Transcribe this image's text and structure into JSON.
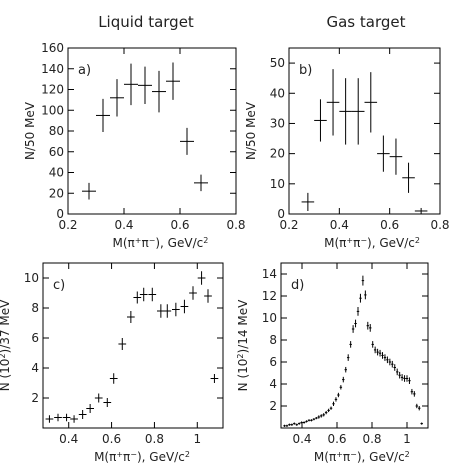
{
  "column_titles": [
    "Liquid target",
    "Gas target"
  ],
  "chart_data": [
    {
      "type": "scatter",
      "panel_label": "a)",
      "ylabel": "N/50 MeV",
      "xlabel_parts": [
        "M(π",
        "+",
        "π",
        "−",
        "), GeV/c",
        "2"
      ],
      "xlim": [
        0.2,
        0.8
      ],
      "ylim": [
        0,
        160
      ],
      "xticks": [
        0.2,
        0.4,
        0.6,
        0.8
      ],
      "xtick_labels": [
        "0.2",
        "0.4",
        "0.6",
        "0.8"
      ],
      "yticks": [
        0,
        20,
        40,
        60,
        80,
        100,
        120,
        140,
        160
      ],
      "ytick_labels": [
        "0",
        "20",
        "40",
        "60",
        "80",
        "100",
        "120",
        "140",
        "160"
      ],
      "x_error": 0.025,
      "points": [
        {
          "x": 0.275,
          "y": 22,
          "err": 8
        },
        {
          "x": 0.325,
          "y": 95,
          "err": 16
        },
        {
          "x": 0.375,
          "y": 112,
          "err": 18
        },
        {
          "x": 0.425,
          "y": 125,
          "err": 20
        },
        {
          "x": 0.475,
          "y": 124,
          "err": 18
        },
        {
          "x": 0.525,
          "y": 118,
          "err": 20
        },
        {
          "x": 0.575,
          "y": 128,
          "err": 18
        },
        {
          "x": 0.625,
          "y": 70,
          "err": 13
        },
        {
          "x": 0.675,
          "y": 30,
          "err": 8
        }
      ]
    },
    {
      "type": "scatter",
      "panel_label": "b)",
      "ylabel": "N/50 MeV",
      "xlabel_parts": [
        "M(π",
        "+",
        "π",
        "−",
        "), GeV/c",
        "2"
      ],
      "xlim": [
        0.2,
        0.8
      ],
      "ylim": [
        0,
        55
      ],
      "xticks": [
        0.2,
        0.4,
        0.6,
        0.8
      ],
      "xtick_labels": [
        "0.2",
        "0.4",
        "0.6",
        "0.8"
      ],
      "yticks": [
        0,
        10,
        20,
        30,
        40,
        50
      ],
      "ytick_labels": [
        "0",
        "10",
        "20",
        "30",
        "40",
        "50"
      ],
      "x_error": 0.025,
      "points": [
        {
          "x": 0.275,
          "y": 4,
          "err": 3
        },
        {
          "x": 0.325,
          "y": 31,
          "err": 7
        },
        {
          "x": 0.375,
          "y": 37,
          "err": 11
        },
        {
          "x": 0.425,
          "y": 34,
          "err": 11
        },
        {
          "x": 0.475,
          "y": 34,
          "err": 11
        },
        {
          "x": 0.525,
          "y": 37,
          "err": 10
        },
        {
          "x": 0.575,
          "y": 20,
          "err": 6
        },
        {
          "x": 0.625,
          "y": 19,
          "err": 6
        },
        {
          "x": 0.675,
          "y": 12,
          "err": 5
        },
        {
          "x": 0.725,
          "y": 1,
          "err": 1
        }
      ]
    },
    {
      "type": "scatter",
      "panel_label": "c)",
      "ylabel_parts": [
        "N (10",
        "2",
        ")/37 MeV"
      ],
      "xlabel_parts": [
        "M(π",
        "+",
        "π",
        "−",
        "), GeV/c",
        "2"
      ],
      "xlim": [
        0.28,
        1.12
      ],
      "ylim": [
        0,
        11
      ],
      "xticks": [
        0.4,
        0.6,
        0.8,
        1.0
      ],
      "xtick_labels": [
        "0.4",
        "0.6",
        "0.8",
        "1"
      ],
      "yticks": [
        2,
        4,
        6,
        8,
        10
      ],
      "ytick_labels": [
        "2",
        "4",
        "6",
        "8",
        "10"
      ],
      "x_error": 0.018,
      "points": [
        {
          "x": 0.31,
          "y": 0.6,
          "err": 0.25
        },
        {
          "x": 0.35,
          "y": 0.7,
          "err": 0.25
        },
        {
          "x": 0.39,
          "y": 0.7,
          "err": 0.25
        },
        {
          "x": 0.425,
          "y": 0.6,
          "err": 0.25
        },
        {
          "x": 0.465,
          "y": 0.9,
          "err": 0.3
        },
        {
          "x": 0.5,
          "y": 1.3,
          "err": 0.3
        },
        {
          "x": 0.54,
          "y": 2.0,
          "err": 0.3
        },
        {
          "x": 0.58,
          "y": 1.7,
          "err": 0.3
        },
        {
          "x": 0.61,
          "y": 3.3,
          "err": 0.35
        },
        {
          "x": 0.65,
          "y": 5.6,
          "err": 0.4
        },
        {
          "x": 0.69,
          "y": 7.4,
          "err": 0.4
        },
        {
          "x": 0.72,
          "y": 8.7,
          "err": 0.4
        },
        {
          "x": 0.75,
          "y": 8.9,
          "err": 0.45
        },
        {
          "x": 0.79,
          "y": 8.9,
          "err": 0.45
        },
        {
          "x": 0.83,
          "y": 7.8,
          "err": 0.45
        },
        {
          "x": 0.86,
          "y": 7.8,
          "err": 0.45
        },
        {
          "x": 0.9,
          "y": 7.9,
          "err": 0.45
        },
        {
          "x": 0.94,
          "y": 8.1,
          "err": 0.45
        },
        {
          "x": 0.98,
          "y": 9.0,
          "err": 0.45
        },
        {
          "x": 1.02,
          "y": 10.0,
          "err": 0.45
        },
        {
          "x": 1.05,
          "y": 8.8,
          "err": 0.45
        },
        {
          "x": 1.08,
          "y": 3.3,
          "err": 0.3
        }
      ]
    },
    {
      "type": "scatter",
      "panel_label": "d)",
      "ylabel_parts": [
        "N (10",
        "2",
        ")/14 MeV"
      ],
      "xlabel_parts": [
        "M(π",
        "+",
        "π",
        "−",
        "), GeV/c",
        "2"
      ],
      "xlim": [
        0.28,
        1.12
      ],
      "ylim": [
        0,
        15
      ],
      "xticks": [
        0.4,
        0.6,
        0.8,
        1.0
      ],
      "xtick_labels": [
        "0.4",
        "0.6",
        "0.8",
        "1"
      ],
      "yticks": [
        2,
        4,
        6,
        8,
        10,
        12,
        14
      ],
      "ytick_labels": [
        "2",
        "4",
        "6",
        "8",
        "10",
        "12",
        "14"
      ],
      "x_error": 0.007,
      "points": [
        {
          "x": 0.3,
          "y": 0.2,
          "err": 0.1
        },
        {
          "x": 0.314,
          "y": 0.2,
          "err": 0.1
        },
        {
          "x": 0.328,
          "y": 0.3,
          "err": 0.1
        },
        {
          "x": 0.342,
          "y": 0.3,
          "err": 0.1
        },
        {
          "x": 0.356,
          "y": 0.4,
          "err": 0.1
        },
        {
          "x": 0.37,
          "y": 0.3,
          "err": 0.1
        },
        {
          "x": 0.384,
          "y": 0.4,
          "err": 0.1
        },
        {
          "x": 0.398,
          "y": 0.5,
          "err": 0.1
        },
        {
          "x": 0.412,
          "y": 0.5,
          "err": 0.1
        },
        {
          "x": 0.426,
          "y": 0.6,
          "err": 0.1
        },
        {
          "x": 0.44,
          "y": 0.7,
          "err": 0.1
        },
        {
          "x": 0.454,
          "y": 0.7,
          "err": 0.1
        },
        {
          "x": 0.468,
          "y": 0.8,
          "err": 0.1
        },
        {
          "x": 0.482,
          "y": 0.9,
          "err": 0.1
        },
        {
          "x": 0.496,
          "y": 1.0,
          "err": 0.15
        },
        {
          "x": 0.51,
          "y": 1.1,
          "err": 0.15
        },
        {
          "x": 0.524,
          "y": 1.2,
          "err": 0.15
        },
        {
          "x": 0.538,
          "y": 1.4,
          "err": 0.15
        },
        {
          "x": 0.552,
          "y": 1.6,
          "err": 0.15
        },
        {
          "x": 0.566,
          "y": 1.8,
          "err": 0.15
        },
        {
          "x": 0.58,
          "y": 2.2,
          "err": 0.2
        },
        {
          "x": 0.594,
          "y": 2.6,
          "err": 0.2
        },
        {
          "x": 0.608,
          "y": 3.0,
          "err": 0.2
        },
        {
          "x": 0.622,
          "y": 3.7,
          "err": 0.2
        },
        {
          "x": 0.636,
          "y": 4.4,
          "err": 0.25
        },
        {
          "x": 0.65,
          "y": 5.3,
          "err": 0.25
        },
        {
          "x": 0.664,
          "y": 6.4,
          "err": 0.3
        },
        {
          "x": 0.678,
          "y": 7.6,
          "err": 0.3
        },
        {
          "x": 0.692,
          "y": 9.0,
          "err": 0.35
        },
        {
          "x": 0.706,
          "y": 9.5,
          "err": 0.35
        },
        {
          "x": 0.72,
          "y": 10.6,
          "err": 0.4
        },
        {
          "x": 0.734,
          "y": 11.8,
          "err": 0.4
        },
        {
          "x": 0.748,
          "y": 13.4,
          "err": 0.45
        },
        {
          "x": 0.762,
          "y": 12.1,
          "err": 0.4
        },
        {
          "x": 0.776,
          "y": 9.3,
          "err": 0.35
        },
        {
          "x": 0.79,
          "y": 9.1,
          "err": 0.35
        },
        {
          "x": 0.804,
          "y": 7.6,
          "err": 0.3
        },
        {
          "x": 0.818,
          "y": 7.1,
          "err": 0.3
        },
        {
          "x": 0.832,
          "y": 6.9,
          "err": 0.3
        },
        {
          "x": 0.846,
          "y": 6.8,
          "err": 0.3
        },
        {
          "x": 0.86,
          "y": 6.6,
          "err": 0.3
        },
        {
          "x": 0.874,
          "y": 6.4,
          "err": 0.3
        },
        {
          "x": 0.888,
          "y": 6.2,
          "err": 0.3
        },
        {
          "x": 0.902,
          "y": 6.0,
          "err": 0.3
        },
        {
          "x": 0.916,
          "y": 5.8,
          "err": 0.3
        },
        {
          "x": 0.93,
          "y": 5.5,
          "err": 0.3
        },
        {
          "x": 0.944,
          "y": 5.1,
          "err": 0.3
        },
        {
          "x": 0.958,
          "y": 4.8,
          "err": 0.3
        },
        {
          "x": 0.972,
          "y": 4.6,
          "err": 0.3
        },
        {
          "x": 0.986,
          "y": 4.5,
          "err": 0.3
        },
        {
          "x": 1.0,
          "y": 4.5,
          "err": 0.3
        },
        {
          "x": 1.014,
          "y": 4.3,
          "err": 0.3
        },
        {
          "x": 1.028,
          "y": 3.3,
          "err": 0.25
        },
        {
          "x": 1.042,
          "y": 3.1,
          "err": 0.25
        },
        {
          "x": 1.056,
          "y": 2.0,
          "err": 0.2
        },
        {
          "x": 1.07,
          "y": 1.8,
          "err": 0.2
        },
        {
          "x": 1.084,
          "y": 0.4,
          "err": 0.1
        }
      ]
    }
  ]
}
